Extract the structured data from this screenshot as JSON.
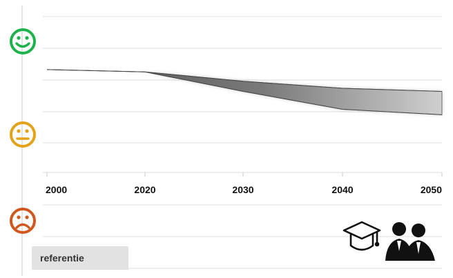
{
  "chart_data": {
    "type": "area",
    "x": [
      2000,
      2020,
      2030,
      2040,
      2050
    ],
    "x_tick_labels": [
      "2000",
      "2020",
      "2030",
      "2040",
      "2050"
    ],
    "series": [
      {
        "values_upper": [
          6.6,
          6.45,
          5.85,
          5.4,
          5.2
        ]
      },
      {
        "values_lower": [
          6.6,
          6.45,
          5.2,
          4.05,
          3.7
        ]
      }
    ],
    "ylim": [
      0,
      10
    ],
    "grid": true,
    "legend_position": "bottom-left"
  },
  "legend": {
    "label": "referentie"
  },
  "icons": {
    "happy": {
      "name": "smiley-happy-icon",
      "color": "#1db34a"
    },
    "neutral": {
      "name": "smiley-neutral-icon",
      "color": "#e3a21a"
    },
    "sad": {
      "name": "smiley-sad-icon",
      "color": "#d0581e"
    },
    "graduate": {
      "name": "graduation-cap-icon",
      "color": "#111111"
    },
    "people": {
      "name": "people-icon",
      "color": "#111111"
    }
  },
  "colors": {
    "band_dark": "#6e6e6e",
    "band_light": "#d6d6d6",
    "grid": "#dcdcdc"
  }
}
